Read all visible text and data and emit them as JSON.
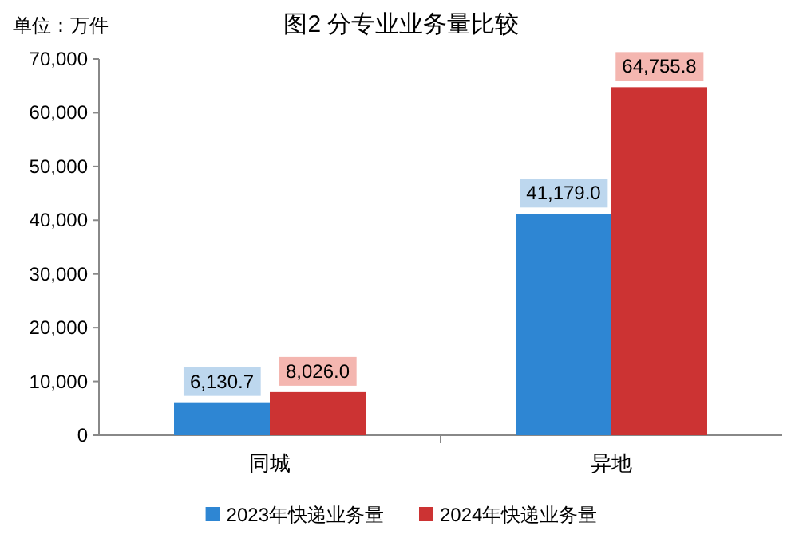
{
  "chart_data": {
    "type": "bar",
    "title": "图2  分专业业务量比较",
    "annotations": [
      "单位：万件"
    ],
    "categories": [
      "同城",
      "异地"
    ],
    "series": [
      {
        "name": "2023年快递业务量",
        "color": "#2e86d3",
        "values": [
          6130.7,
          41179.0
        ],
        "value_labels": [
          "6,130.7",
          "41,179.0"
        ]
      },
      {
        "name": "2024年快递业务量",
        "color": "#cc3333",
        "values": [
          8026.0,
          64755.8
        ],
        "value_labels": [
          "8,026.0",
          "64,755.8"
        ]
      }
    ],
    "ylim": [
      0,
      70000
    ],
    "yticks": [
      0,
      {
        "value": 10000,
        "label": "10,000"
      },
      {
        "value": 20000,
        "label": "20,000"
      },
      {
        "value": 30000,
        "label": "30,000"
      },
      {
        "value": 40000,
        "label": "40,000"
      },
      {
        "value": 50000,
        "label": "50,000"
      },
      {
        "value": 60000,
        "label": "60,000"
      },
      {
        "value": 70000,
        "label": "70,000"
      }
    ],
    "legend": "bottom"
  }
}
